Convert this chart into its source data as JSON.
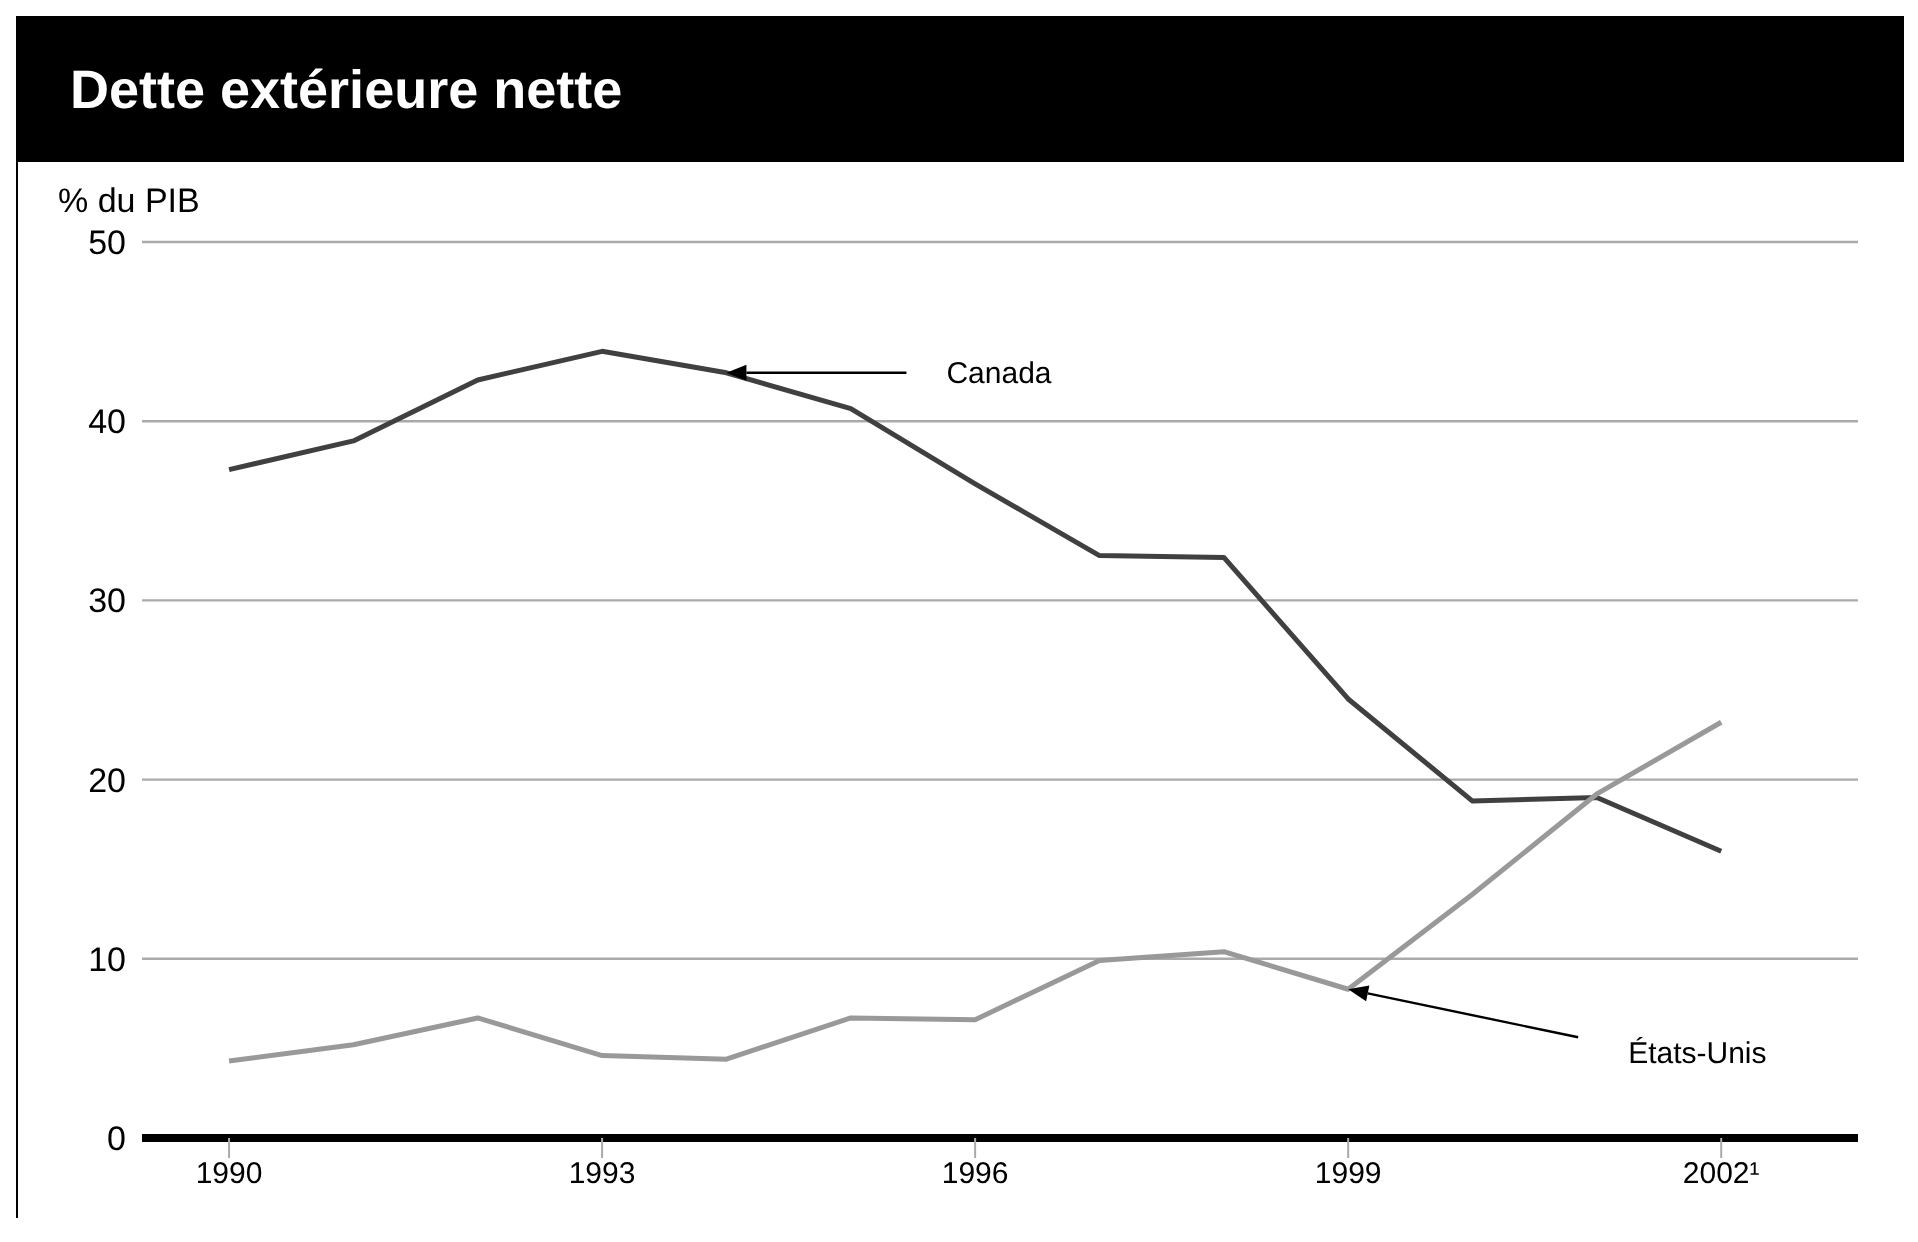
{
  "chart_data": {
    "type": "line",
    "title": "Dette extérieure nette",
    "ylabel": "% du PIB",
    "x": [
      1990,
      1991,
      1992,
      1993,
      1994,
      1995,
      1996,
      1997,
      1998,
      1999,
      2000,
      2001,
      2002
    ],
    "series": [
      {
        "color": "#404040",
        "values": [
          37.3,
          38.9,
          42.3,
          43.9,
          42.7,
          40.7,
          36.5,
          32.5,
          32.4,
          24.5,
          18.8,
          19.0,
          16.0
        ]
      },
      {
        "color": "#999999",
        "values": [
          4.3,
          5.2,
          6.7,
          4.6,
          4.4,
          6.7,
          6.6,
          9.9,
          10.4,
          8.3,
          13.6,
          19.2,
          23.2
        ]
      }
    ],
    "xlim": [
      1989.3,
      2003.1
    ],
    "xticks": [
      1990,
      1993,
      1996,
      1999,
      {
        "value": 2002,
        "label": "2002¹"
      }
    ],
    "ylim": [
      0,
      50
    ],
    "yticks": [
      0,
      10,
      20,
      30,
      40,
      50
    ],
    "grid": "y",
    "legend": false,
    "marker": "none",
    "line_style": "solid",
    "annotations": [
      "Canada",
      "États-Unis"
    ]
  }
}
